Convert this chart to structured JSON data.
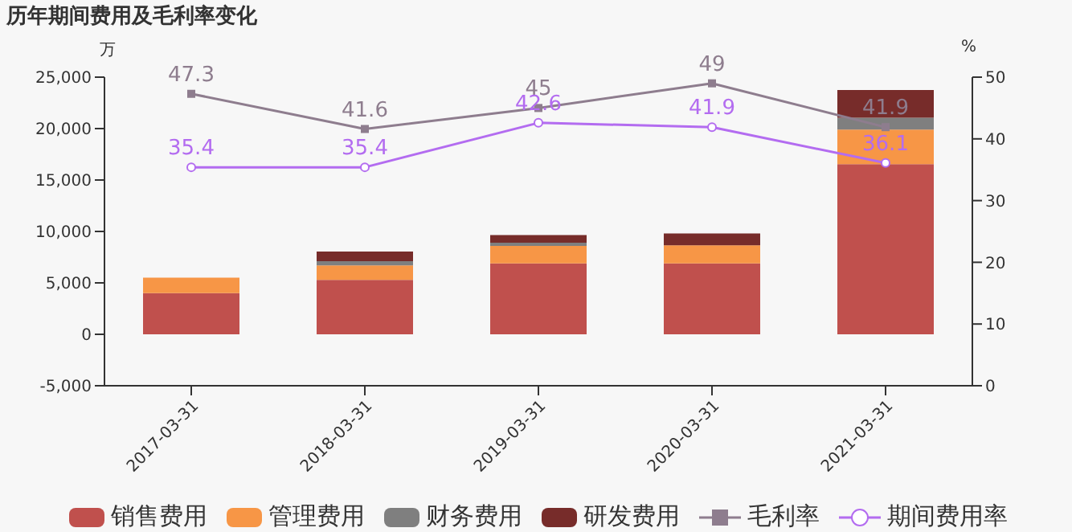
{
  "chart_data": {
    "type": "bar",
    "title": "历年期间费用及毛利率变化",
    "ylabel": "万",
    "y2label": "%",
    "categories": [
      "2017-03-31",
      "2018-03-31",
      "2019-03-31",
      "2020-03-31",
      "2021-03-31"
    ],
    "stacked": true,
    "series": [
      {
        "name": "销售费用",
        "color": "#c0504d",
        "values": [
          4000,
          5300,
          6900,
          6900,
          16550
        ]
      },
      {
        "name": "管理费用",
        "color": "#f79646",
        "values": [
          1500,
          1400,
          1700,
          1750,
          3350
        ]
      },
      {
        "name": "财务费用",
        "color": "#7f7f7f",
        "values": [
          0,
          400,
          300,
          0,
          1150
        ]
      },
      {
        "name": "研发费用",
        "color": "#772c2a",
        "values": [
          0,
          950,
          750,
          1150,
          2700
        ]
      },
      {
        "name": "毛利率",
        "type": "line",
        "axis": "y2",
        "color": "#8e7d8e",
        "marker": "square",
        "data_labels": true,
        "values": [
          47.3,
          41.6,
          45,
          49,
          41.9
        ]
      },
      {
        "name": "期间费用率",
        "type": "line",
        "axis": "y2",
        "color": "#b36cf0",
        "marker": "circle",
        "data_labels": true,
        "values": [
          35.4,
          35.4,
          42.6,
          41.9,
          36.1
        ]
      }
    ],
    "ylim": [
      -5000,
      25000
    ],
    "yticks": [
      {
        "value": -5000,
        "label": "-5,000"
      },
      0,
      {
        "value": 5000,
        "label": "5,000"
      },
      {
        "value": 10000,
        "label": "10,000"
      },
      {
        "value": 15000,
        "label": "15,000"
      },
      {
        "value": 20000,
        "label": "20,000"
      },
      {
        "value": 25000,
        "label": "25,000"
      }
    ],
    "y2lim": [
      0,
      50
    ],
    "y2ticks": [
      0,
      10,
      20,
      30,
      40,
      50
    ],
    "grid": false,
    "legend": "bottom"
  }
}
